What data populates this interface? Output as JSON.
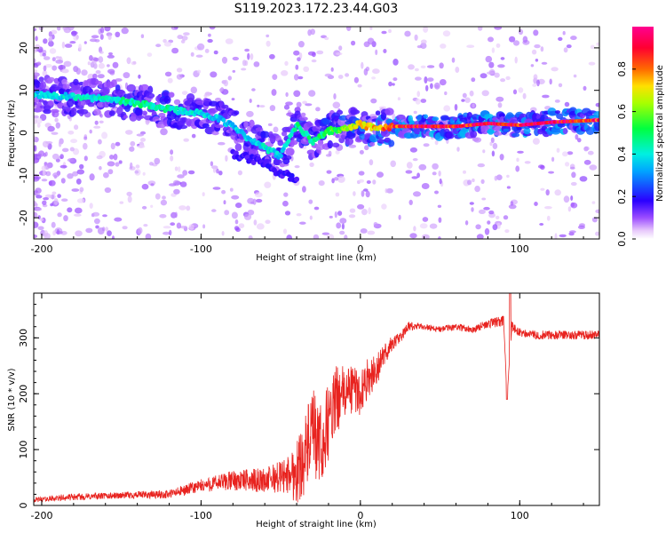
{
  "figure": {
    "title": "S119.2023.172.23.44.G03"
  },
  "chart_data": [
    {
      "type": "heatmap",
      "title": "",
      "xlabel": "Height of straight line (km)",
      "ylabel": "Frequency (Hz)",
      "xlim": [
        -205,
        150
      ],
      "ylim": [
        -25,
        25
      ],
      "xticks": [
        -200,
        -100,
        0,
        100
      ],
      "yticks": [
        -20,
        -10,
        0,
        10,
        20
      ],
      "colorbar": {
        "label": "Normalized spectral amplitude",
        "range": [
          0,
          1
        ],
        "ticks": [
          0.0,
          0.2,
          0.4,
          0.6,
          0.8
        ],
        "colors": [
          "#ffffff",
          "#d9b3f5",
          "#7a00ff",
          "#0033ff",
          "#00ccff",
          "#00ff66",
          "#ccff00",
          "#ff6600",
          "#ff0044",
          "#ff0088"
        ]
      },
      "ridge": {
        "x": [
          -200,
          -180,
          -160,
          -140,
          -120,
          -100,
          -90,
          -80,
          -70,
          -60,
          -50,
          -40,
          -30,
          -20,
          -10,
          0,
          10,
          20,
          40,
          60,
          80,
          100,
          120,
          150
        ],
        "frequency": [
          9,
          8.5,
          8,
          7,
          5.5,
          4.5,
          3.5,
          1.5,
          -1.5,
          -3.5,
          -5.5,
          2,
          -2,
          0.5,
          1,
          2,
          1,
          1.5,
          1.5,
          1.5,
          2.2,
          1.8,
          2.5,
          3.0
        ],
        "amplitude": [
          0.35,
          0.4,
          0.4,
          0.45,
          0.45,
          0.4,
          0.35,
          0.35,
          0.35,
          0.4,
          0.35,
          0.45,
          0.45,
          0.55,
          0.6,
          0.7,
          0.75,
          0.85,
          0.95,
          0.9,
          0.95,
          0.9,
          0.95,
          0.85
        ]
      },
      "secondary_branch": {
        "x": [
          -80,
          -70,
          -60,
          -55,
          -50,
          -45,
          -40
        ],
        "frequency": [
          -5,
          -6,
          -7,
          -8.5,
          -9.5,
          -10,
          -11
        ]
      }
    },
    {
      "type": "line",
      "title": "",
      "xlabel": "Height of straight line (km)",
      "ylabel": "SNR (10 * v/v)",
      "xlim": [
        -205,
        150
      ],
      "ylim": [
        0,
        380
      ],
      "xticks": [
        -200,
        -100,
        0,
        100
      ],
      "yticks": [
        0,
        100,
        200,
        300
      ],
      "series": [
        {
          "color": "#e8231f",
          "x": [
            -205,
            -180,
            -150,
            -120,
            -100,
            -80,
            -60,
            -45,
            -40,
            -35,
            -30,
            -25,
            -20,
            -15,
            -10,
            -5,
            0,
            5,
            10,
            15,
            20,
            25,
            30,
            40,
            50,
            60,
            70,
            80,
            90,
            92,
            95,
            100,
            110,
            120,
            130,
            140,
            150
          ],
          "y": [
            10,
            15,
            18,
            20,
            35,
            45,
            45,
            55,
            60,
            90,
            130,
            100,
            150,
            190,
            200,
            210,
            200,
            230,
            240,
            270,
            290,
            300,
            320,
            320,
            315,
            320,
            315,
            325,
            330,
            190,
            320,
            310,
            305,
            305,
            305,
            305,
            305
          ],
          "noise": [
            4,
            6,
            6,
            8,
            12,
            18,
            22,
            35,
            60,
            70,
            80,
            80,
            70,
            60,
            50,
            45,
            40,
            35,
            30,
            20,
            15,
            10,
            8,
            6,
            6,
            6,
            6,
            8,
            10,
            0,
            10,
            8,
            8,
            8,
            8,
            8,
            8
          ]
        }
      ]
    }
  ]
}
